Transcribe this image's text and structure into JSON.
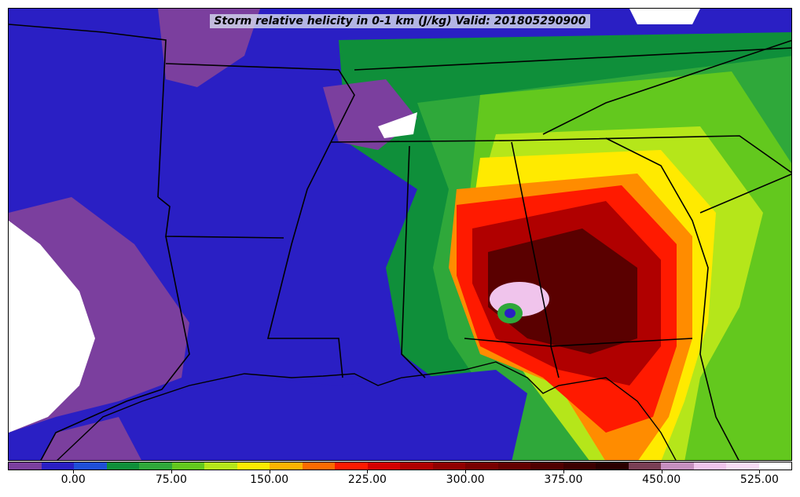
{
  "title": "Storm relative helicity in 0-1 km (J/kg) Valid: 201805290900",
  "colorbar": {
    "colors": [
      "#7b3f9e",
      "#2a1fc4",
      "#1f4fd8",
      "#0f8f3a",
      "#2fa83a",
      "#63c81e",
      "#b5e61a",
      "#ffea00",
      "#ffb300",
      "#ff6a00",
      "#ff1a00",
      "#d40000",
      "#b00000",
      "#900000",
      "#780000",
      "#640000",
      "#500000",
      "#3c0000",
      "#2a0000",
      "#7a3f55",
      "#c58fbf",
      "#f0c4ec",
      "#f7dcf4",
      "#ffffff"
    ],
    "tick_labels": [
      "0.00",
      "75.00",
      "150.00",
      "225.00",
      "300.00",
      "375.00",
      "450.00",
      "525.00"
    ]
  },
  "map": {
    "palette": {
      "purple": "#7b3f9e",
      "blue": "#2a1fc4",
      "lightblue": "#1f4fd8",
      "darkgreen": "#0f8f3a",
      "green": "#2fa83a",
      "lime": "#63c81e",
      "yellowgreen": "#b5e61a",
      "yellow": "#ffea00",
      "orange": "#ff8c00",
      "red": "#ff1a00",
      "darkred": "#b00000",
      "maroon": "#5a0000",
      "pink": "#f0c4ec",
      "white": "#ffffff"
    },
    "boundary_color": "#000000"
  }
}
